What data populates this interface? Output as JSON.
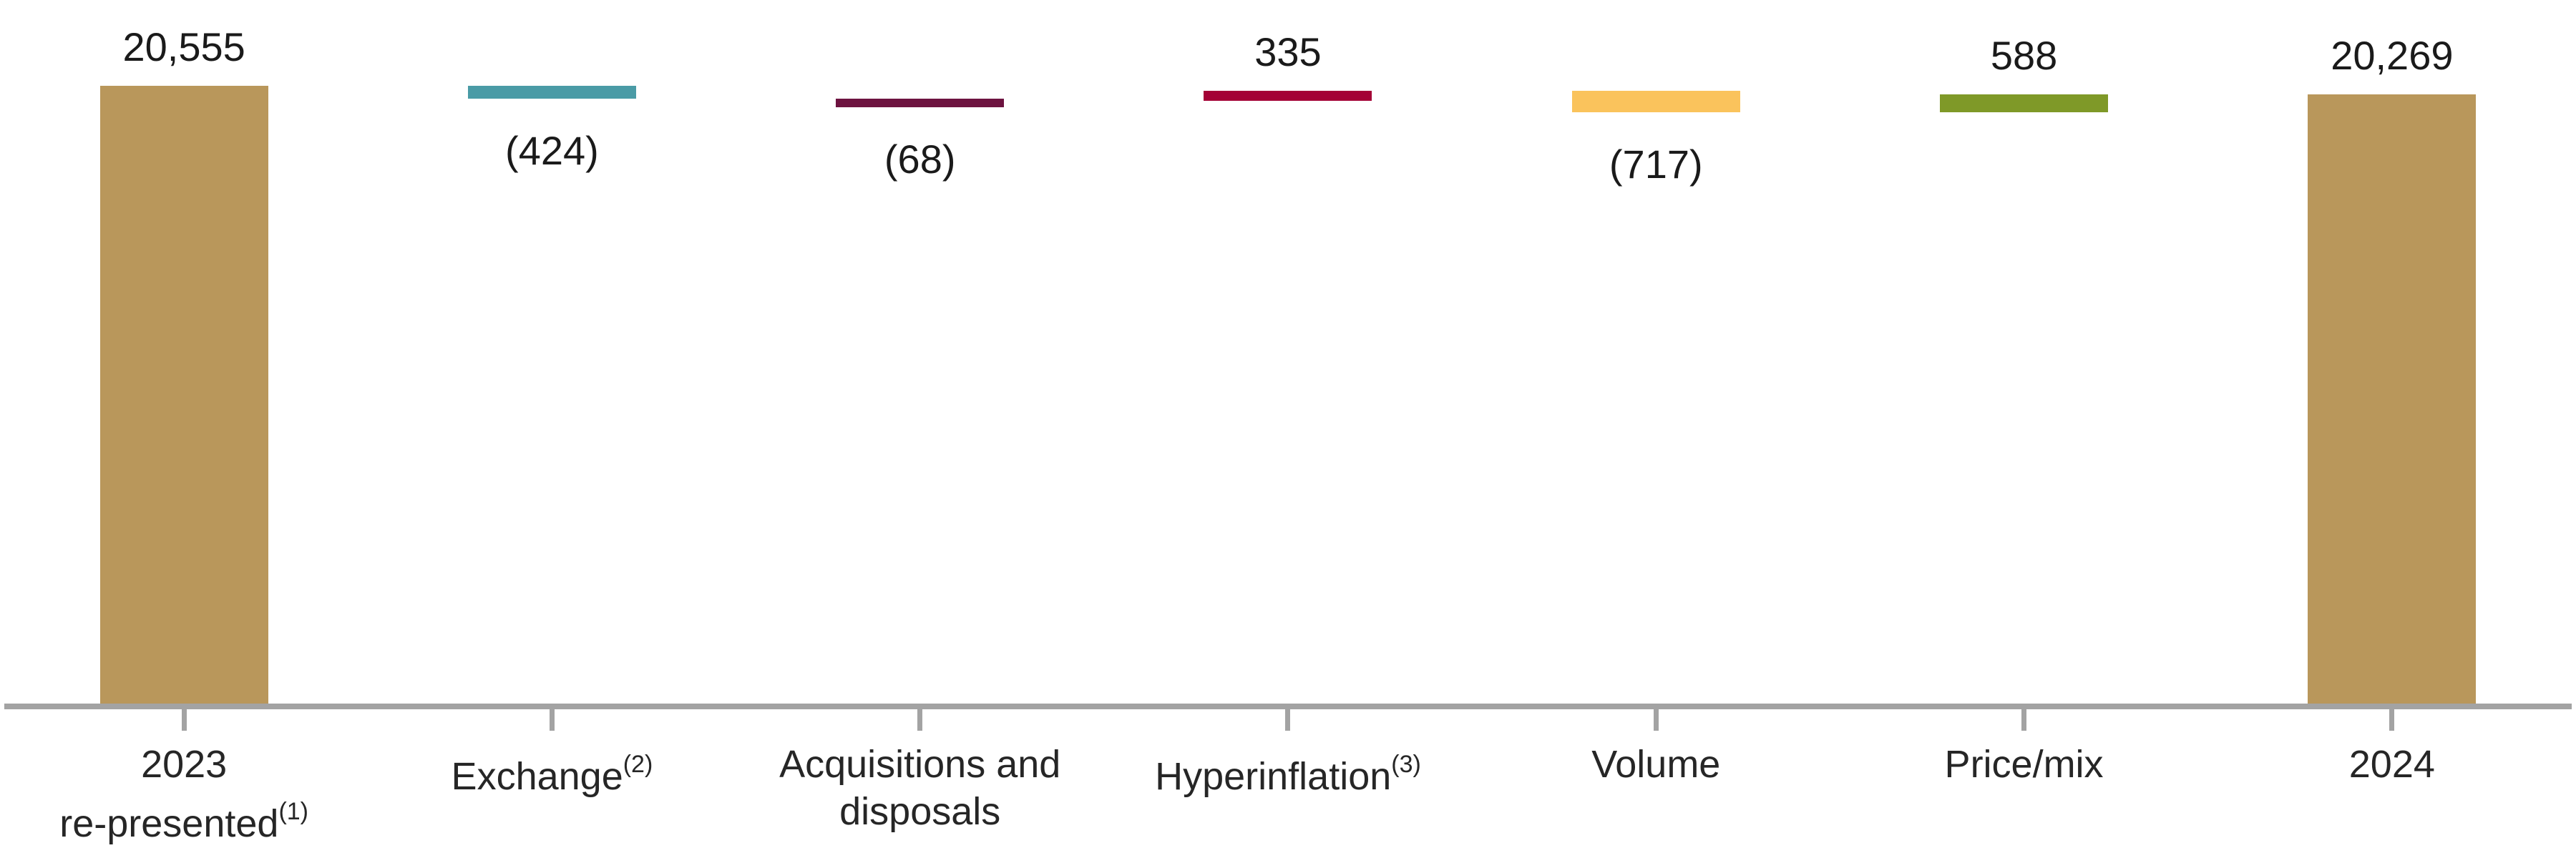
{
  "chart_data": {
    "type": "bar",
    "subtype": "waterfall",
    "title": "",
    "xlabel": "",
    "ylabel": "",
    "ylim": [
      0,
      20555
    ],
    "grid": false,
    "legend": false,
    "axis_color": "#a3a3a3",
    "values_sequence": [
      20555,
      -424,
      -68,
      335,
      -717,
      588,
      20269
    ],
    "columns": [
      {
        "id": "2023-re-presented",
        "label_lines": [
          "2023",
          "re-presented"
        ],
        "label_superscript": "(1)",
        "kind": "total",
        "value": 20555,
        "value_label": "20,555",
        "value_label_position": "above",
        "color": "#B9975B"
      },
      {
        "id": "exchange",
        "label_lines": [
          "Exchange"
        ],
        "label_superscript": "(2)",
        "kind": "delta",
        "value": -424,
        "value_label": "(424)",
        "value_label_position": "below",
        "color": "#4A9BA6"
      },
      {
        "id": "acquisitions-and-disposals",
        "label_lines": [
          "Acquisitions and",
          "disposals"
        ],
        "label_superscript": "",
        "kind": "delta",
        "value": -68,
        "value_label": "(68)",
        "value_label_position": "below",
        "color": "#6D1340"
      },
      {
        "id": "hyperinflation",
        "label_lines": [
          "Hyperinflation"
        ],
        "label_superscript": "(3)",
        "kind": "delta",
        "value": 335,
        "value_label": "335",
        "value_label_position": "above",
        "color": "#A40136"
      },
      {
        "id": "volume",
        "label_lines": [
          "Volume"
        ],
        "label_superscript": "",
        "kind": "delta",
        "value": -717,
        "value_label": "(717)",
        "value_label_position": "below",
        "color": "#FAC35C"
      },
      {
        "id": "price-mix",
        "label_lines": [
          "Price/mix"
        ],
        "label_superscript": "",
        "kind": "delta",
        "value": 588,
        "value_label": "588",
        "value_label_position": "above",
        "color": "#7F9928"
      },
      {
        "id": "2024",
        "label_lines": [
          "2024"
        ],
        "label_superscript": "",
        "kind": "total",
        "value": 20269,
        "value_label": "20,269",
        "value_label_position": "above",
        "color": "#B9975B"
      }
    ]
  }
}
